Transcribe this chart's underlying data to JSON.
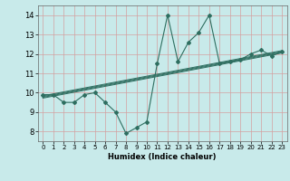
{
  "xlabel": "Humidex (Indice chaleur)",
  "xlim": [
    0,
    23
  ],
  "ylim": [
    7.5,
    14.5
  ],
  "xticks": [
    0,
    1,
    2,
    3,
    4,
    5,
    6,
    7,
    8,
    9,
    10,
    11,
    12,
    13,
    14,
    15,
    16,
    17,
    18,
    19,
    20,
    21,
    22,
    23
  ],
  "yticks": [
    8,
    9,
    10,
    11,
    12,
    13,
    14
  ],
  "bg_color": "#c8eaea",
  "line_color": "#2e6e60",
  "grid_color_v": "#d4a0a0",
  "grid_color_h": "#d4a0a0",
  "series": [
    [
      0,
      9.9
    ],
    [
      1,
      9.9
    ],
    [
      2,
      9.5
    ],
    [
      3,
      9.5
    ],
    [
      4,
      9.9
    ],
    [
      5,
      10.0
    ],
    [
      6,
      9.5
    ],
    [
      7,
      9.0
    ],
    [
      8,
      7.9
    ],
    [
      9,
      8.2
    ],
    [
      10,
      8.5
    ],
    [
      11,
      11.5
    ],
    [
      12,
      14.0
    ],
    [
      13,
      11.6
    ],
    [
      14,
      12.6
    ],
    [
      15,
      13.1
    ],
    [
      16,
      14.0
    ],
    [
      17,
      11.5
    ],
    [
      18,
      11.6
    ],
    [
      19,
      11.7
    ],
    [
      20,
      12.0
    ],
    [
      21,
      12.2
    ],
    [
      22,
      11.9
    ],
    [
      23,
      12.1
    ]
  ],
  "regression_lines": [
    {
      "x": [
        0,
        23
      ],
      "y": [
        9.72,
        12.05
      ]
    },
    {
      "x": [
        0,
        23
      ],
      "y": [
        9.76,
        12.09
      ]
    },
    {
      "x": [
        0,
        23
      ],
      "y": [
        9.8,
        12.13
      ]
    },
    {
      "x": [
        0,
        23
      ],
      "y": [
        9.84,
        12.17
      ]
    }
  ]
}
